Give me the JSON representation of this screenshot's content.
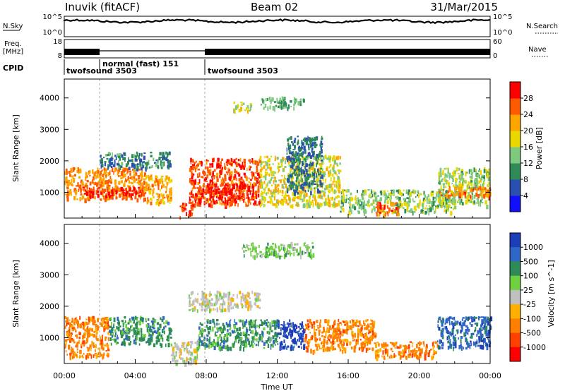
{
  "header": {
    "station": "Inuvik (fitACF)",
    "beam": "Beam 02",
    "date": "31/Mar/2015"
  },
  "aux": {
    "nsky_label": "N.Sky",
    "nsky_ticks": [
      "10^5",
      "10^0"
    ],
    "nsearch_label": "N.Search",
    "nsearch_ticks": [
      "10^5",
      "10^0"
    ],
    "freq_label": [
      "Freq.",
      "[MHz]"
    ],
    "freq_ticks": [
      "18",
      "8"
    ],
    "nave_label": "Nave",
    "nave_ticks": [
      "60",
      "0"
    ],
    "cpid_label": "CPID",
    "cpid_segments": [
      {
        "label": "twofsound 3503",
        "start_h": 0.0,
        "end_h": 2.0
      },
      {
        "label": "normal (fast) 151",
        "start_h": 2.0,
        "end_h": 8.0
      },
      {
        "label": "twofsound 3503",
        "start_h": 8.0,
        "end_h": 24.0
      }
    ]
  },
  "x_axis": {
    "label": "Time UT",
    "ticks": [
      "00:00",
      "04:00",
      "08:00",
      "12:00",
      "16:00",
      "20:00",
      "00:00"
    ]
  },
  "chart_data": [
    {
      "type": "heatmap",
      "name": "power",
      "ylabel": "Slant Range [km]",
      "yticks": [
        1000,
        2000,
        3000,
        4000
      ],
      "ylim": [
        180,
        4600
      ],
      "xlim_hours": [
        0,
        24
      ],
      "colorbar": {
        "label": "Power [dB]",
        "tick_labels": [
          "4",
          "8",
          "12",
          "16",
          "20",
          "24",
          "28"
        ],
        "range": [
          0,
          32
        ],
        "colors": [
          "#1010ff",
          "#2b4fae",
          "#2e8b57",
          "#7fc97f",
          "#e8d800",
          "#ffa500",
          "#ff5a00",
          "#ff0000"
        ]
      },
      "regions": [
        {
          "t0": 0.0,
          "t1": 4.5,
          "r0": 800,
          "r1": 1800,
          "v": 24
        },
        {
          "t0": 1.0,
          "t1": 4.5,
          "r0": 900,
          "r1": 1200,
          "v": 29
        },
        {
          "t0": 2.0,
          "t1": 6.0,
          "r0": 1800,
          "r1": 2300,
          "v": 9
        },
        {
          "t0": 4.5,
          "t1": 6.0,
          "r0": 700,
          "r1": 1600,
          "v": 22
        },
        {
          "t0": 6.5,
          "t1": 7.2,
          "r0": 220,
          "r1": 700,
          "v": 27
        },
        {
          "t0": 7.0,
          "t1": 11.0,
          "r0": 600,
          "r1": 2100,
          "v": 27
        },
        {
          "t0": 8.0,
          "t1": 10.5,
          "r0": 700,
          "r1": 1300,
          "v": 30
        },
        {
          "t0": 9.5,
          "t1": 10.5,
          "r0": 3600,
          "r1": 3900,
          "v": 17
        },
        {
          "t0": 11.0,
          "t1": 13.5,
          "r0": 3700,
          "r1": 4050,
          "v": 12
        },
        {
          "t0": 11.0,
          "t1": 15.5,
          "r0": 600,
          "r1": 2200,
          "v": 18
        },
        {
          "t0": 12.5,
          "t1": 14.5,
          "r0": 1000,
          "r1": 2800,
          "v": 8
        },
        {
          "t0": 15.5,
          "t1": 22.0,
          "r0": 400,
          "r1": 1100,
          "v": 14
        },
        {
          "t0": 17.5,
          "t1": 18.8,
          "r0": 300,
          "r1": 700,
          "v": 26
        },
        {
          "t0": 21.0,
          "t1": 24.0,
          "r0": 600,
          "r1": 1800,
          "v": 15
        },
        {
          "t0": 21.0,
          "t1": 24.0,
          "r0": 900,
          "r1": 1200,
          "v": 25
        }
      ]
    },
    {
      "type": "heatmap",
      "name": "velocity",
      "ylabel": "Slant Range [km]",
      "yticks": [
        1000,
        2000,
        3000,
        4000
      ],
      "ylim": [
        180,
        4600
      ],
      "xlim_hours": [
        0,
        24
      ],
      "colorbar": {
        "label": "Velocity [m s^-1]",
        "tick_labels": [
          "1000",
          "500",
          "100",
          "25",
          "-25",
          "-100",
          "-500",
          "-1000"
        ],
        "bins": [
          "+1000+",
          "500..1000",
          "100..500",
          "25..100",
          "-25..25",
          "-100..-25",
          "-500..-100",
          "-1000..-500",
          "<-1000"
        ],
        "colors": [
          "#1c3fb8",
          "#2f66c8",
          "#2e8b57",
          "#6fd040",
          "#c0c0c0",
          "#ffb000",
          "#ff8000",
          "#ff4000",
          "#ff0000"
        ]
      },
      "regions": [
        {
          "t0": 0.0,
          "t1": 2.5,
          "r0": 400,
          "r1": 1700,
          "v": 6
        },
        {
          "t0": 2.5,
          "t1": 6.0,
          "r0": 800,
          "r1": 1700,
          "v": 2
        },
        {
          "t0": 6.0,
          "t1": 7.5,
          "r0": 200,
          "r1": 900,
          "v": 4
        },
        {
          "t0": 7.5,
          "t1": 12.0,
          "r0": 700,
          "r1": 1600,
          "v": 2
        },
        {
          "t0": 7.0,
          "t1": 11.0,
          "r0": 1900,
          "r1": 2500,
          "v": 4
        },
        {
          "t0": 12.0,
          "t1": 13.5,
          "r0": 700,
          "r1": 1600,
          "v": 0
        },
        {
          "t0": 13.5,
          "t1": 17.5,
          "r0": 600,
          "r1": 1600,
          "v": 6
        },
        {
          "t0": 17.5,
          "t1": 21.0,
          "r0": 400,
          "r1": 900,
          "v": 6
        },
        {
          "t0": 21.0,
          "t1": 24.0,
          "r0": 700,
          "r1": 1700,
          "v": 1
        },
        {
          "t0": 10.0,
          "t1": 14.0,
          "r0": 3600,
          "r1": 4050,
          "v": 3
        }
      ]
    }
  ]
}
